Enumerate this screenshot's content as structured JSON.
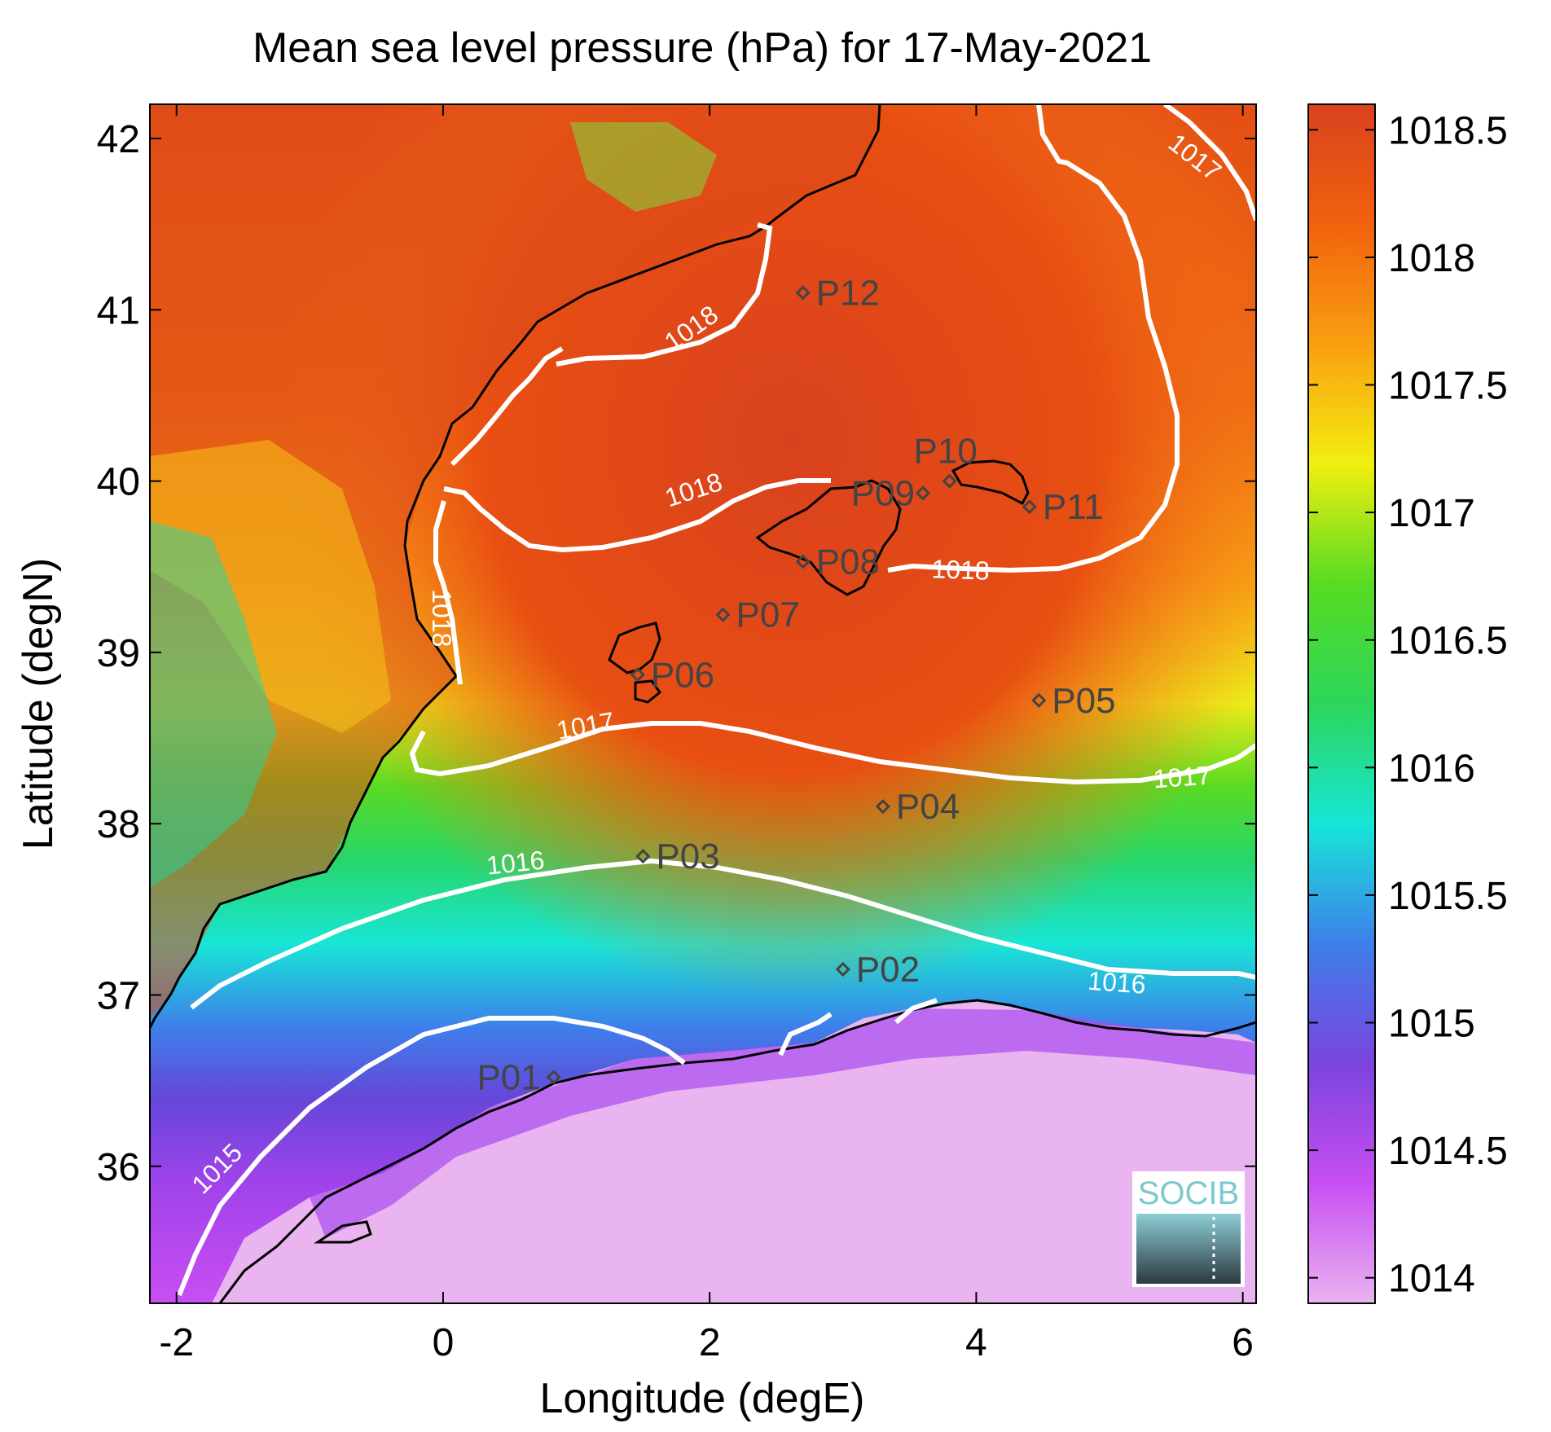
{
  "chart_data": {
    "type": "heatmap",
    "title": "Mean sea level pressure (hPa) for 17-May-2021",
    "xlabel": "Longitude (degE)",
    "ylabel": "Latitude (degN)",
    "xlim": [
      -2.2,
      6.1
    ],
    "ylim": [
      35.2,
      42.2
    ],
    "x_ticks": [
      -2,
      0,
      2,
      4,
      6
    ],
    "x_tick_labels": [
      "-2",
      "0",
      "2",
      "4",
      "6"
    ],
    "y_ticks": [
      36,
      37,
      38,
      39,
      40,
      41,
      42
    ],
    "y_tick_labels": [
      "36",
      "37",
      "38",
      "39",
      "40",
      "41",
      "42"
    ],
    "colorbar": {
      "range": [
        1013.9,
        1018.6
      ],
      "ticks": [
        1014,
        1014.5,
        1015,
        1015.5,
        1016,
        1016.5,
        1017,
        1017.5,
        1018,
        1018.5
      ],
      "tick_labels": [
        "1014",
        "1014.5",
        "1015",
        "1015.5",
        "1016",
        "1016.5",
        "1017",
        "1017.5",
        "1018",
        "1018.5"
      ],
      "colors": [
        "#e9b4ef",
        "#c84ef2",
        "#7b44dc",
        "#3d7fea",
        "#17e6d8",
        "#2cd65a",
        "#57dc22",
        "#f2ee10",
        "#f99f10",
        "#f2620e",
        "#d9411e"
      ]
    },
    "stations": [
      {
        "label": "P01",
        "lon": 0.83,
        "lat": 36.52
      },
      {
        "label": "P02",
        "lon": 3.0,
        "lat": 37.15
      },
      {
        "label": "P03",
        "lon": 1.5,
        "lat": 37.81
      },
      {
        "label": "P04",
        "lon": 3.3,
        "lat": 38.1
      },
      {
        "label": "P05",
        "lon": 4.47,
        "lat": 38.72
      },
      {
        "label": "P06",
        "lon": 1.46,
        "lat": 38.87
      },
      {
        "label": "P07",
        "lon": 2.1,
        "lat": 39.22
      },
      {
        "label": "P08",
        "lon": 2.7,
        "lat": 39.53
      },
      {
        "label": "P09",
        "lon": 3.6,
        "lat": 39.93
      },
      {
        "label": "P10",
        "lon": 3.8,
        "lat": 40.0
      },
      {
        "label": "P11",
        "lon": 4.4,
        "lat": 39.85
      },
      {
        "label": "P12",
        "lon": 2.7,
        "lat": 41.1
      }
    ],
    "contours": [
      {
        "level": "1015",
        "label_lon": -1.65,
        "label_lat": 35.95
      },
      {
        "level": "1016",
        "label_lon": 0.55,
        "label_lat": 37.72
      },
      {
        "level": "1016",
        "label_lon": 5.05,
        "label_lat": 37.02
      },
      {
        "level": "1017",
        "label_lon": 1.08,
        "label_lat": 38.52
      },
      {
        "level": "1017",
        "label_lon": 5.55,
        "label_lat": 38.22
      },
      {
        "level": "1018",
        "label_lon": 1.9,
        "label_lat": 40.85
      },
      {
        "level": "1018",
        "label_lon": 1.9,
        "label_lat": 39.9
      },
      {
        "level": "1018",
        "label_lon": -0.08,
        "label_lat": 39.2
      },
      {
        "level": "1018",
        "label_lon": 3.88,
        "label_lat": 39.43
      },
      {
        "level": "1017",
        "label_lon": 5.6,
        "label_lat": 41.85
      }
    ],
    "logo_text": "SOCIB"
  }
}
